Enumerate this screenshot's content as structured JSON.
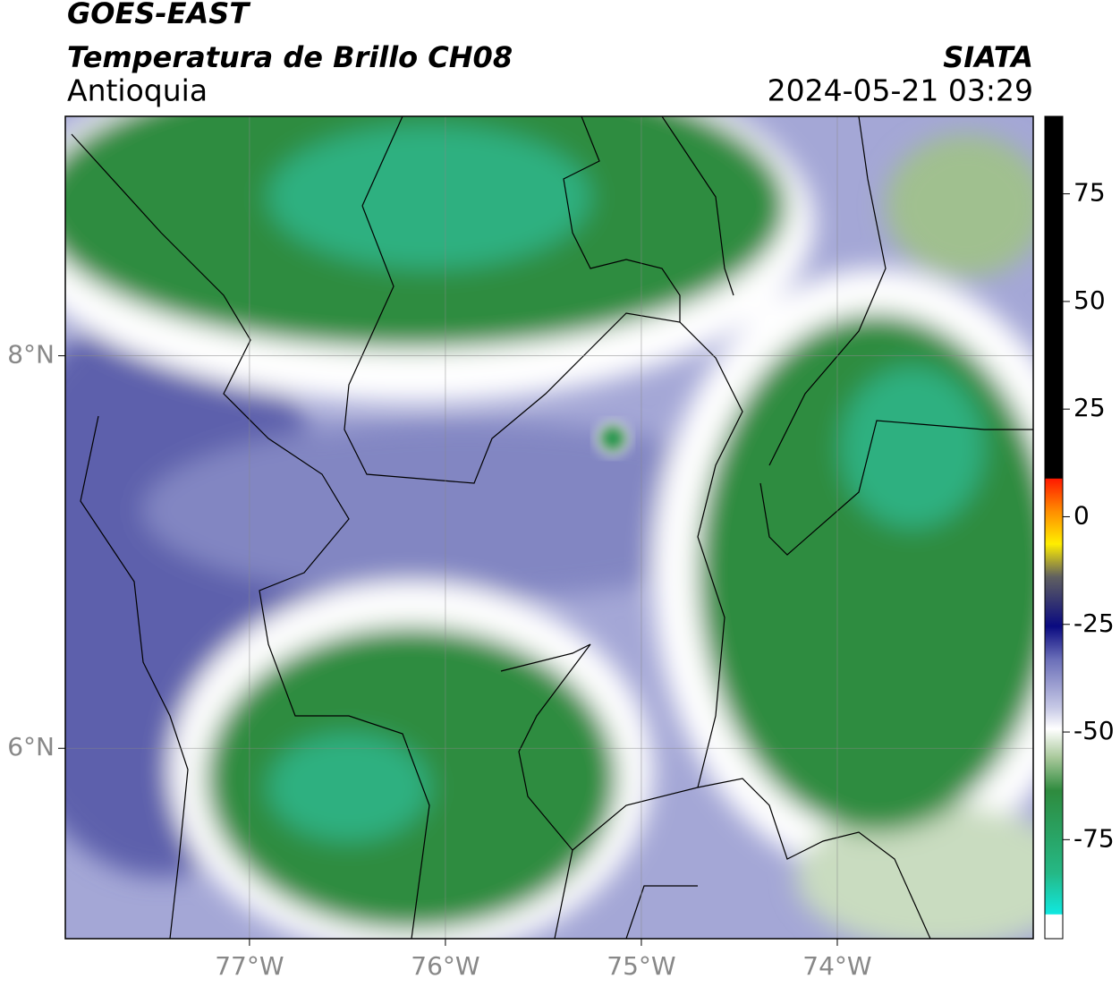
{
  "title": "GOES-EAST",
  "subtitle": "Temperatura de Brillo CH08",
  "region": "Antioquia",
  "source": "SIATA",
  "datetime": "2024-05-21 03:29",
  "map": {
    "lon_range": [
      -77.94,
      -73.0
    ],
    "lat_range": [
      5.03,
      9.22
    ],
    "lon_ticks": [
      {
        "value": -77,
        "label": "77°W"
      },
      {
        "value": -76,
        "label": "76°W"
      },
      {
        "value": -75,
        "label": "75°W"
      },
      {
        "value": -74,
        "label": "74°W"
      }
    ],
    "lat_ticks": [
      {
        "value": 6,
        "label": "6°N"
      },
      {
        "value": 8,
        "label": "8°N"
      }
    ],
    "grid": true
  },
  "colorbar": {
    "range": [
      -98,
      93
    ],
    "ticks": [
      75,
      50,
      25,
      0,
      -25,
      -50,
      -75
    ]
  }
}
